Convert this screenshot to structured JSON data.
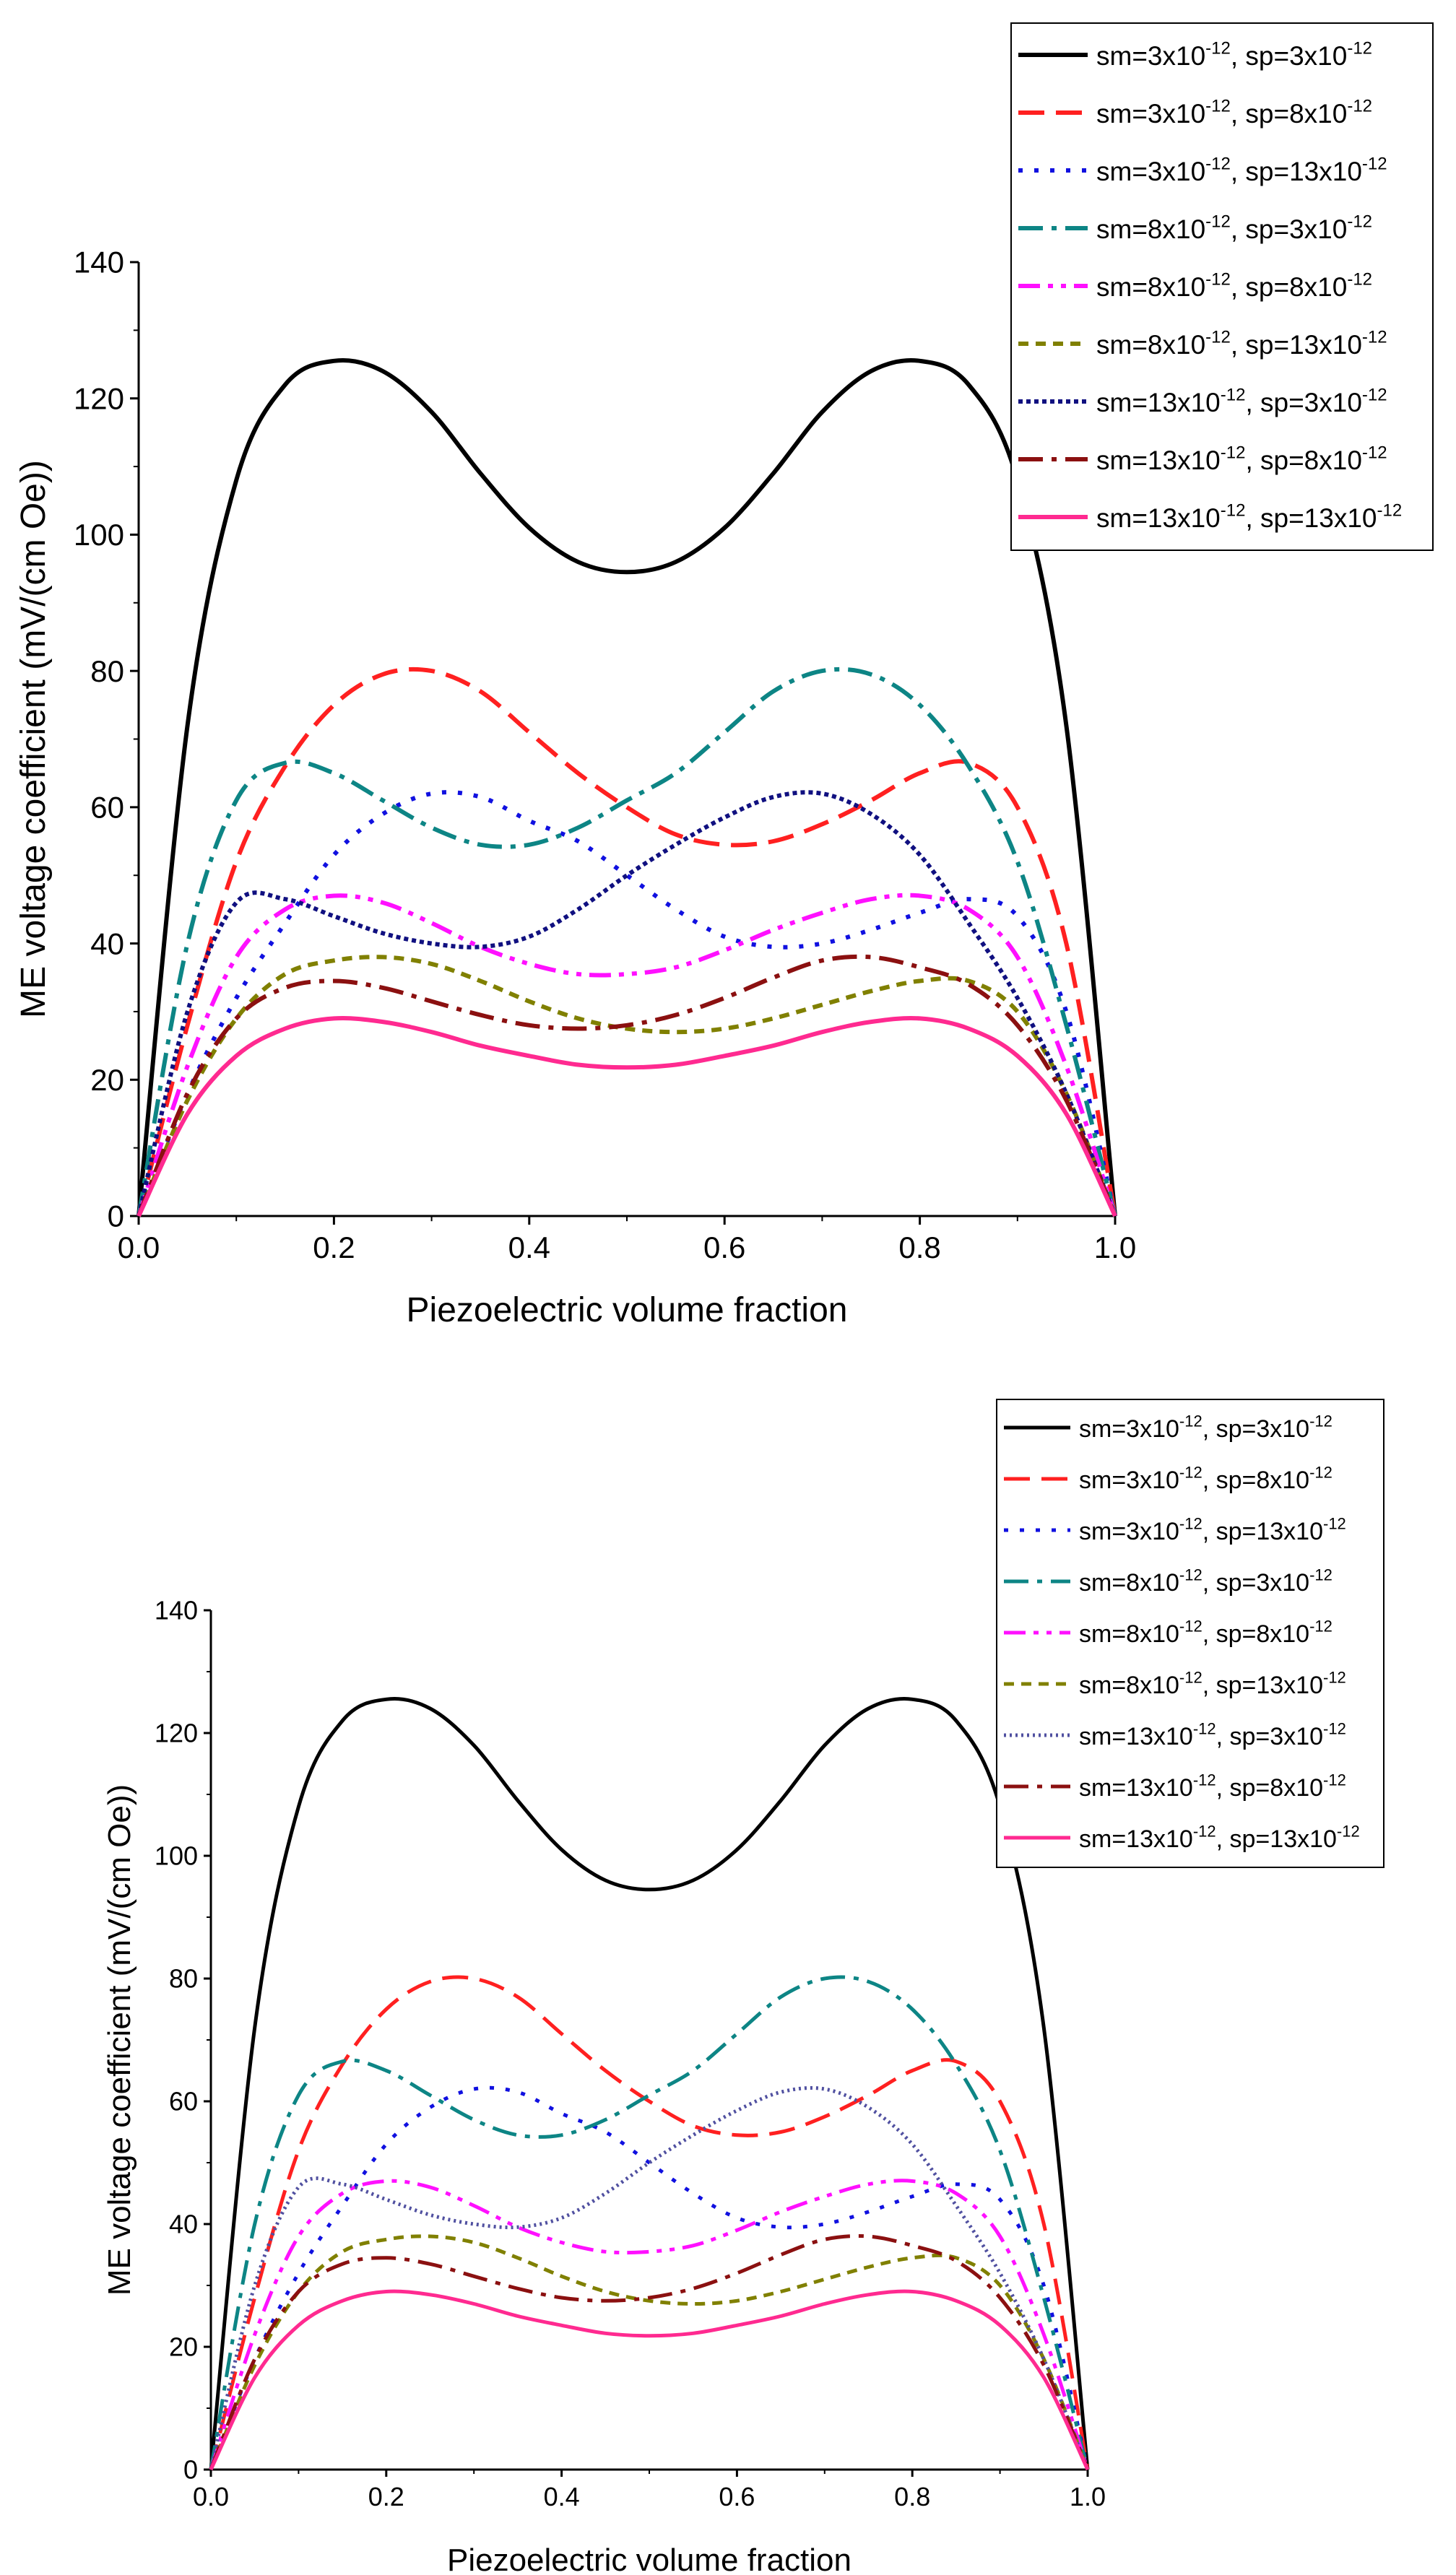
{
  "chart_data": [
    {
      "type": "line",
      "xlabel": "Piezoelectric volume fraction",
      "ylabel": "ME voltage coefficient (mV/(cm Oe))",
      "xlim": [
        0.0,
        1.0
      ],
      "ylim": [
        0,
        140
      ],
      "xticks": [
        "0.0",
        "0.2",
        "0.4",
        "0.6",
        "0.8",
        "1.0"
      ],
      "yticks": [
        "0",
        "20",
        "40",
        "60",
        "80",
        "100",
        "120",
        "140"
      ],
      "legend_position": "top-right",
      "x": [
        0.0,
        0.05,
        0.1,
        0.15,
        0.2,
        0.25,
        0.3,
        0.35,
        0.4,
        0.45,
        0.5,
        0.55,
        0.6,
        0.65,
        0.7,
        0.75,
        0.8,
        0.85,
        0.9,
        0.95,
        1.0
      ],
      "series": [
        {
          "name": "sm=3x10-12, sp=3x10-12",
          "sm_base": "sm=3x10",
          "sm_exp": "-12",
          "sp_base": ", sp=3x10",
          "sp_exp": "-12",
          "color": "#000000",
          "dash": "solid",
          "values": [
            0,
            72,
            108,
            122,
            125.5,
            124,
            118,
            109,
            101,
            96,
            94.5,
            96,
            101,
            109,
            118,
            124,
            125.5,
            122,
            108,
            72,
            0
          ]
        },
        {
          "name": "sm=3x10-12, sp=8x10-12",
          "sm_base": "sm=3x10",
          "sm_exp": "-12",
          "sp_base": ", sp=8x10",
          "sp_exp": "-12",
          "color": "#ff2020",
          "dash": "dash",
          "values": [
            0,
            28,
            52,
            66,
            75,
            79.5,
            80,
            77,
            71,
            65,
            60,
            56,
            54.5,
            55,
            57.5,
            61,
            65,
            66.5,
            60,
            40,
            0
          ]
        },
        {
          "name": "sm=3x10-12, sp=13x10-12",
          "sm_base": "sm=3x10",
          "sm_exp": "-12",
          "sp_base": ", sp=13x10",
          "sp_exp": "-12",
          "color": "#1010e0",
          "dash": "dot",
          "values": [
            0,
            18,
            32,
            43,
            53,
            59,
            62,
            61.5,
            58,
            55,
            50,
            45,
            41,
            39.5,
            40,
            42,
            44.5,
            46.5,
            44,
            30,
            0
          ]
        },
        {
          "name": "sm=8x10-12, sp=3x10-12",
          "sm_base": "sm=8x10",
          "sm_exp": "-12",
          "sp_base": ", sp=3x10",
          "sp_exp": "-12",
          "color": "#0d8585",
          "dash": "dashdot",
          "values": [
            0,
            40,
            61,
            66.5,
            65,
            61,
            57,
            54.5,
            54.5,
            57,
            61,
            65,
            71,
            77,
            80,
            79.5,
            75,
            66,
            52,
            28,
            0
          ]
        },
        {
          "name": "sm=8x10-12, sp=8x10-12",
          "sm_base": "sm=8x10",
          "sm_exp": "-12",
          "sp_base": ", sp=8x10",
          "sp_exp": "-12",
          "color": "#ff10ff",
          "dash": "dashdotdot",
          "values": [
            0,
            22,
            38,
            45,
            47,
            46,
            43,
            39.5,
            37,
            35.5,
            35.5,
            36.5,
            39,
            42,
            44.5,
            46.5,
            47,
            45,
            38,
            22,
            0
          ]
        },
        {
          "name": "sm=8x10-12, sp=13x10-12",
          "sm_base": "sm=8x10",
          "sm_exp": "-12",
          "sp_base": ", sp=13x10",
          "sp_exp": "-12",
          "color": "#808000",
          "dash": "shortdash",
          "values": [
            0,
            17,
            29,
            35.5,
            37.5,
            38,
            37,
            34.5,
            31.5,
            29,
            27.5,
            27,
            27.5,
            29,
            31,
            33,
            34.5,
            34.5,
            30,
            18,
            0
          ]
        },
        {
          "name": "sm=13x10-12, sp=3x10-12",
          "sm_base": "sm=13x10",
          "sm_exp": "-12",
          "sp_base": ", sp=3x10",
          "sp_exp": "-12",
          "color": "#101080",
          "dash": "densedot",
          "values": [
            0,
            30,
            46,
            46.5,
            44,
            41.5,
            40,
            39.5,
            41,
            45,
            50,
            54.5,
            58.5,
            61.5,
            62,
            59,
            53,
            43,
            32,
            18,
            0
          ]
        },
        {
          "name": "sm=13x10-12, sp=8x10-12",
          "sm_base": "sm=13x10",
          "sm_exp": "-12",
          "sp_base": ", sp=8x10",
          "sp_exp": "-12",
          "color": "#8b1010",
          "dash": "dashdot",
          "values": [
            0,
            18,
            29,
            33.5,
            34.5,
            33.5,
            31.5,
            29.5,
            28,
            27.5,
            28,
            29.5,
            32,
            35,
            37.5,
            38,
            36.5,
            34,
            28,
            17,
            0
          ]
        },
        {
          "name": "sm=13x10-12, sp=13x10-12",
          "sm_base": "sm=13x10",
          "sm_exp": "-12",
          "sp_base": ", sp=13x10",
          "sp_exp": "-12",
          "color": "#ff2a90",
          "dash": "solid",
          "values": [
            0,
            15,
            23.5,
            27.5,
            29,
            28.5,
            27,
            25,
            23.5,
            22.2,
            21.8,
            22.2,
            23.5,
            25,
            27,
            28.5,
            29,
            27.5,
            23.5,
            15,
            0
          ]
        }
      ]
    },
    {
      "type": "line",
      "xlabel": "Piezoelectric volume fraction",
      "ylabel": "ME voltage coefficient (mV/(cm Oe))",
      "xlim": [
        0.0,
        1.0
      ],
      "ylim": [
        0,
        140
      ],
      "xticks": [
        "0.0",
        "0.2",
        "0.4",
        "0.6",
        "0.8",
        "1.0"
      ],
      "yticks": [
        "0",
        "20",
        "40",
        "60",
        "80",
        "100",
        "120",
        "140"
      ],
      "legend_position": "top-right",
      "x": [
        0.0,
        0.05,
        0.1,
        0.15,
        0.2,
        0.25,
        0.3,
        0.35,
        0.4,
        0.45,
        0.5,
        0.55,
        0.6,
        0.65,
        0.7,
        0.75,
        0.8,
        0.85,
        0.9,
        0.95,
        1.0
      ],
      "series": [
        {
          "name": "sm=3x10-12, sp=3x10-12",
          "sm_base": "sm=3x10",
          "sm_exp": "-12",
          "sp_base": ", sp=3x10",
          "sp_exp": "-12",
          "color": "#000000",
          "dash": "solid",
          "values": [
            0,
            72,
            108,
            122,
            125.5,
            124,
            118,
            109,
            101,
            96,
            94.5,
            96,
            101,
            109,
            118,
            124,
            125.5,
            122,
            108,
            72,
            0
          ]
        },
        {
          "name": "sm=3x10-12, sp=8x10-12",
          "sm_base": "sm=3x10",
          "sm_exp": "-12",
          "sp_base": ", sp=8x10",
          "sp_exp": "-12",
          "color": "#ff2020",
          "dash": "dash",
          "values": [
            0,
            28,
            52,
            66,
            75,
            79.5,
            80,
            77,
            71,
            65,
            60,
            56,
            54.5,
            55,
            57.5,
            61,
            65,
            66.5,
            60,
            40,
            0
          ]
        },
        {
          "name": "sm=3x10-12, sp=13x10-12",
          "sm_base": "sm=3x10",
          "sm_exp": "-12",
          "sp_base": ", sp=13x10",
          "sp_exp": "-12",
          "color": "#1010e0",
          "dash": "dot",
          "values": [
            0,
            18,
            32,
            43,
            53,
            59,
            62,
            61.5,
            58,
            55,
            50,
            45,
            41,
            39.5,
            40,
            42,
            44.5,
            46.5,
            44,
            30,
            0
          ]
        },
        {
          "name": "sm=8x10-12, sp=3x10-12",
          "sm_base": "sm=8x10",
          "sm_exp": "-12",
          "sp_base": ", sp=3x10",
          "sp_exp": "-12",
          "color": "#0d8585",
          "dash": "dashdot",
          "values": [
            0,
            40,
            61,
            66.5,
            65,
            61,
            57,
            54.5,
            54.5,
            57,
            61,
            65,
            71,
            77,
            80,
            79.5,
            75,
            66,
            52,
            28,
            0
          ]
        },
        {
          "name": "sm=8x10-12, sp=8x10-12",
          "sm_base": "sm=8x10",
          "sm_exp": "-12",
          "sp_base": ", sp=8x10",
          "sp_exp": "-12",
          "color": "#ff10ff",
          "dash": "dashdotdot",
          "values": [
            0,
            22,
            38,
            45,
            47,
            46,
            43,
            39.5,
            37,
            35.5,
            35.5,
            36.5,
            39,
            42,
            44.5,
            46.5,
            47,
            45,
            38,
            22,
            0
          ]
        },
        {
          "name": "sm=8x10-12, sp=13x10-12",
          "sm_base": "sm=8x10",
          "sm_exp": "-12",
          "sp_base": ", sp=13x10",
          "sp_exp": "-12",
          "color": "#808000",
          "dash": "shortdash",
          "values": [
            0,
            17,
            29,
            35.5,
            37.5,
            38,
            37,
            34.5,
            31.5,
            29,
            27.5,
            27,
            27.5,
            29,
            31,
            33,
            34.5,
            34.5,
            30,
            18,
            0
          ]
        },
        {
          "name": "sm=13x10-12, sp=3x10-12",
          "sm_base": "sm=13x10",
          "sm_exp": "-12",
          "sp_base": ", sp=3x10",
          "sp_exp": "-12",
          "color": "#5050a0",
          "dash": "finedot",
          "values": [
            0,
            30,
            46,
            46.5,
            44,
            41.5,
            40,
            39.5,
            41,
            45,
            50,
            54.5,
            58.5,
            61.5,
            62,
            59,
            53,
            43,
            32,
            18,
            0
          ]
        },
        {
          "name": "sm=13x10-12, sp=8x10-12",
          "sm_base": "sm=13x10",
          "sm_exp": "-12",
          "sp_base": ", sp=8x10",
          "sp_exp": "-12",
          "color": "#8b1010",
          "dash": "dashdot",
          "values": [
            0,
            18,
            29,
            33.5,
            34.5,
            33.5,
            31.5,
            29.5,
            28,
            27.5,
            28,
            29.5,
            32,
            35,
            37.5,
            38,
            36.5,
            34,
            28,
            17,
            0
          ]
        },
        {
          "name": "sm=13x10-12, sp=13x10-12",
          "sm_base": "sm=13x10",
          "sm_exp": "-12",
          "sp_base": ", sp=13x10",
          "sp_exp": "-12",
          "color": "#ff2a90",
          "dash": "solid",
          "values": [
            0,
            15,
            23.5,
            27.5,
            29,
            28.5,
            27,
            25,
            23.5,
            22.2,
            21.8,
            22.2,
            23.5,
            25,
            27,
            28.5,
            29,
            27.5,
            23.5,
            15,
            0
          ]
        }
      ]
    }
  ]
}
